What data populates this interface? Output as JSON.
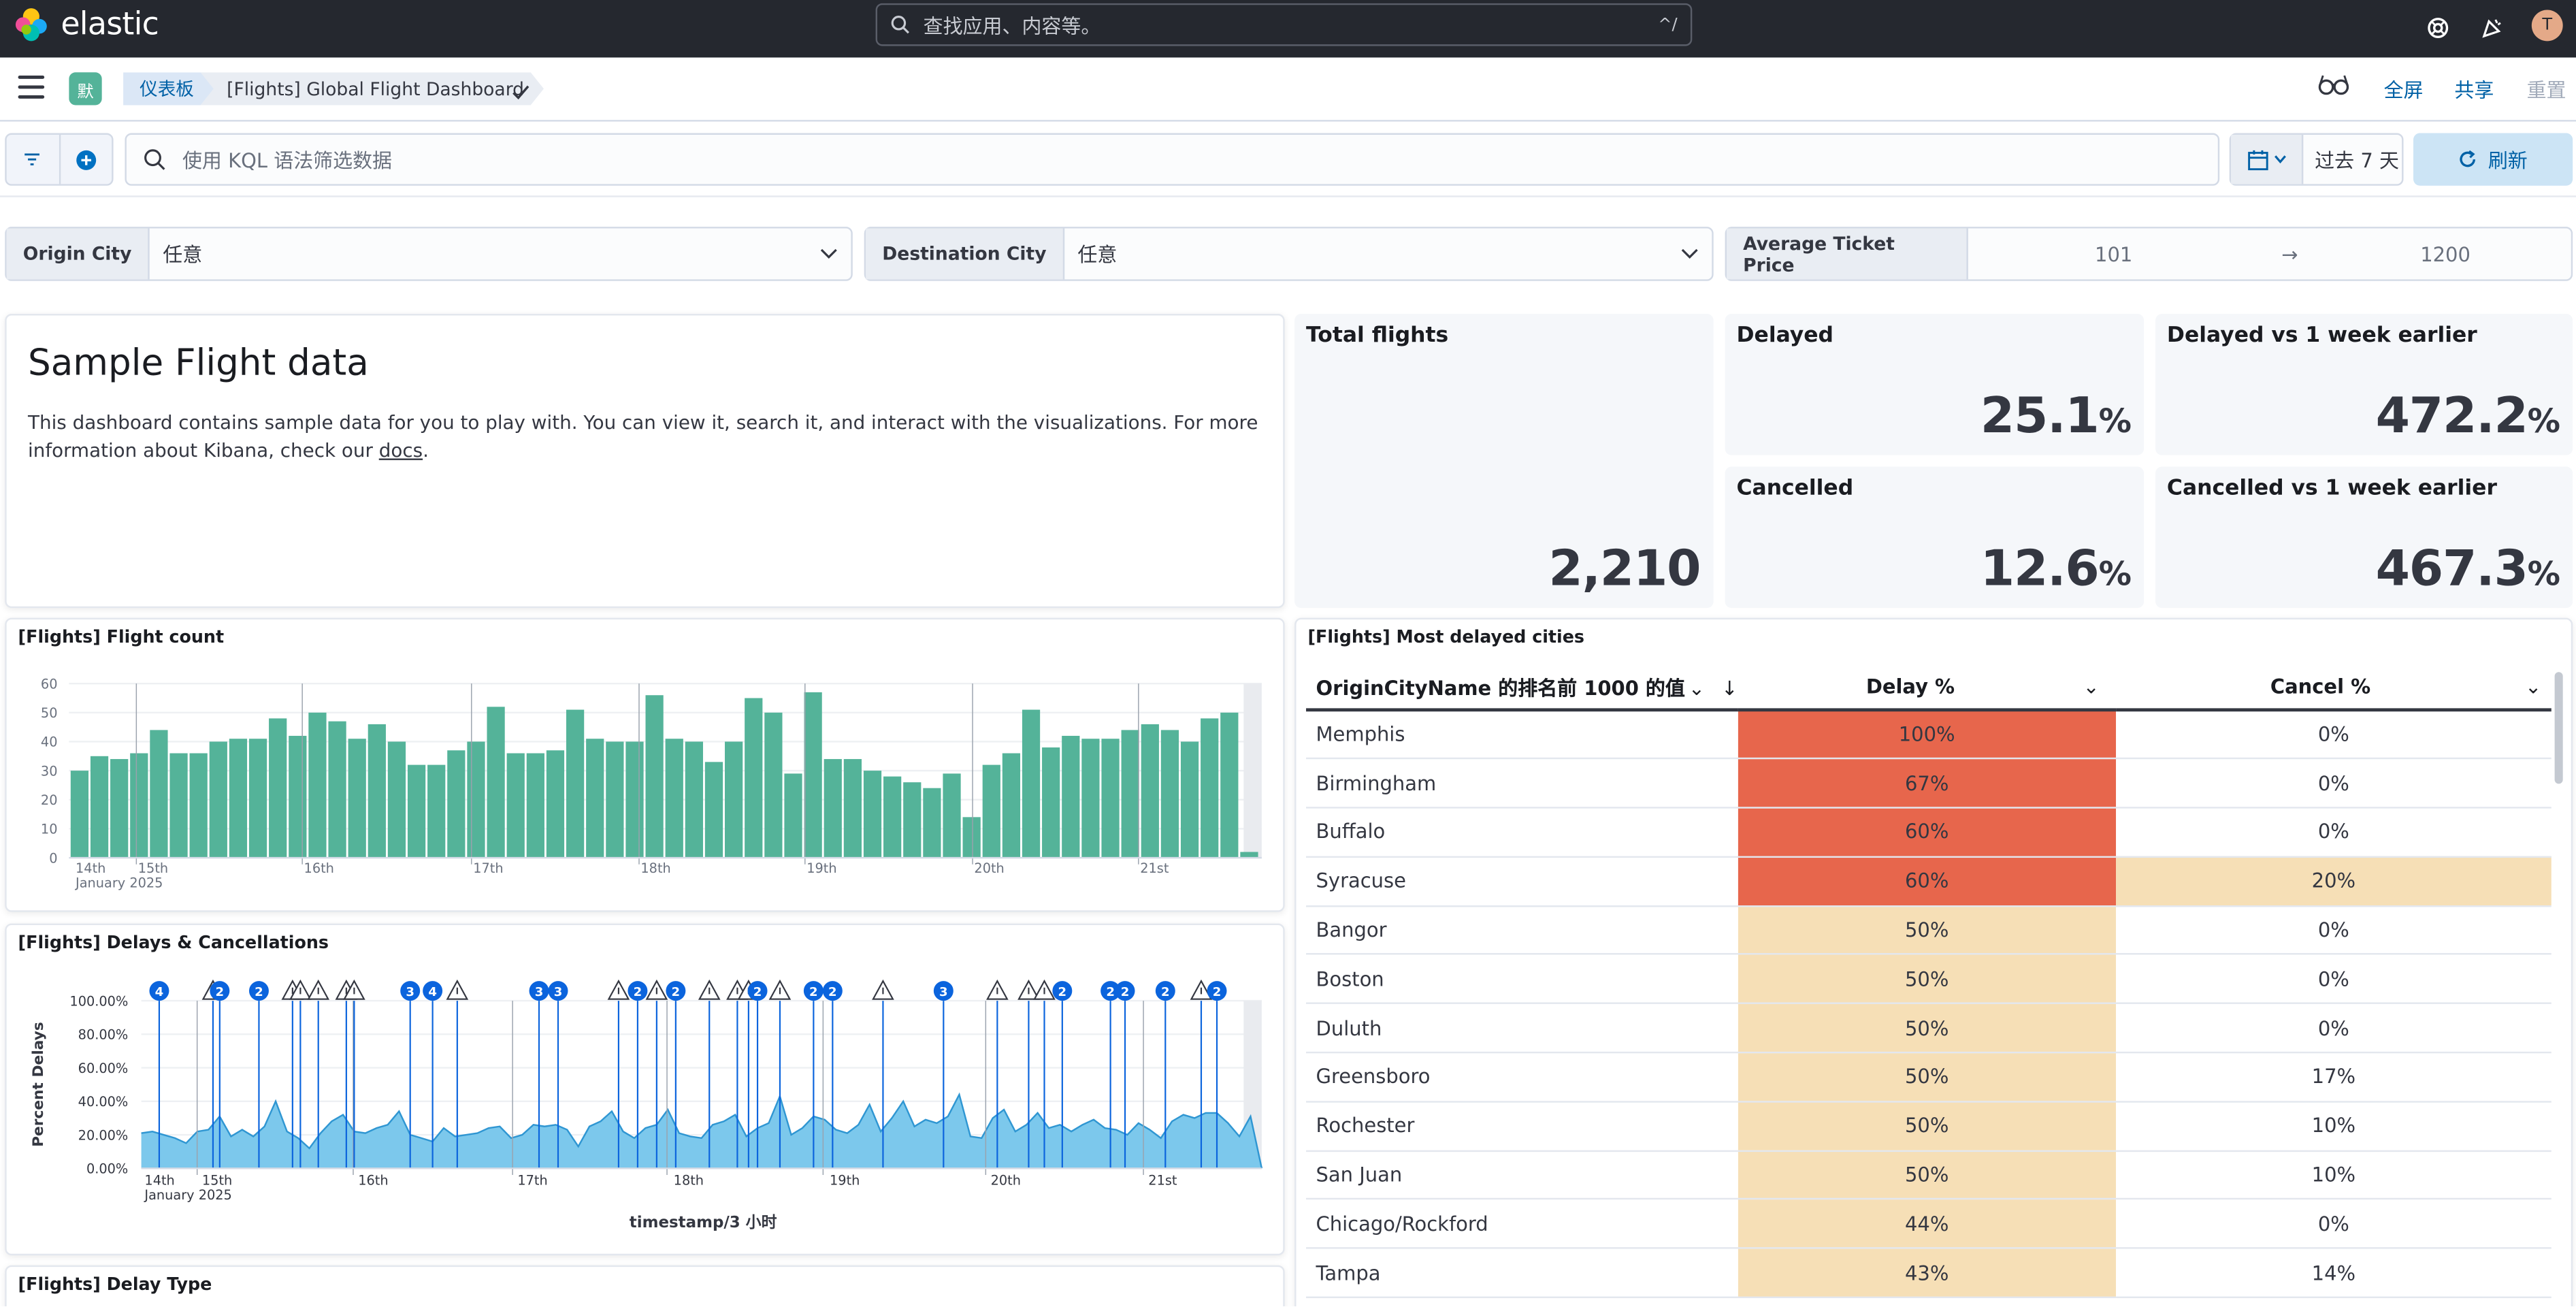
{
  "header": {
    "logo_text": "elastic",
    "search_placeholder": "查找应用、内容等。",
    "search_shortcut": "^/",
    "avatar_initial": "T"
  },
  "nav": {
    "space_initial": "默",
    "breadcrumb_root": "仪表板",
    "breadcrumb_current": "[Flights] Global Flight Dashboard",
    "links": {
      "fullscreen": "全屏",
      "share": "共享",
      "reset": "重置"
    }
  },
  "query": {
    "placeholder": "使用 KQL 语法筛选数据",
    "date_range": "过去 7 天",
    "refresh_label": "刷新"
  },
  "controls": {
    "origin_label": "Origin City",
    "origin_value": "任意",
    "dest_label": "Destination City",
    "dest_value": "任意",
    "price_label": "Average Ticket Price",
    "price_min": "101",
    "price_arrow": "→",
    "price_max": "1200"
  },
  "markdown": {
    "heading": "Sample Flight data",
    "body_before": "This dashboard contains sample data for you to play with. You can view it, search it, and interact with the visualizations. For more information about Kibana, check our ",
    "link": "docs",
    "body_after": "."
  },
  "metrics": {
    "total": {
      "title": "Total flights",
      "value": "2,210",
      "unit": ""
    },
    "delayed": {
      "title": "Delayed",
      "value": "25.1",
      "unit": "%"
    },
    "delayed_wow": {
      "title": "Delayed vs 1 week earlier",
      "value": "472.2",
      "unit": "%"
    },
    "cancelled": {
      "title": "Cancelled",
      "value": "12.6",
      "unit": "%"
    },
    "cancelled_wow": {
      "title": "Cancelled vs 1 week earlier",
      "value": "467.3",
      "unit": "%"
    }
  },
  "panels": {
    "flight_count_title": "[Flights] Flight count",
    "delays_title": "[Flights] Delays & Cancellations",
    "delay_type_title": "[Flights] Delay Type",
    "cities_title": "[Flights] Most delayed cities"
  },
  "chart_data": [
    {
      "type": "bar",
      "title": "[Flights] Flight count",
      "color": "#54b399",
      "ylim": [
        0,
        60
      ],
      "yticks": [
        0,
        10,
        20,
        30,
        40,
        50,
        60
      ],
      "xticks": [
        "14th",
        "15th",
        "16th",
        "17th",
        "18th",
        "19th",
        "20th",
        "21st"
      ],
      "xsub": "January 2025",
      "values": [
        30,
        35,
        34,
        36,
        44,
        36,
        36,
        40,
        41,
        41,
        48,
        42,
        50,
        47,
        41,
        46,
        40,
        32,
        32,
        37,
        40,
        52,
        36,
        36,
        37,
        51,
        41,
        40,
        40,
        56,
        41,
        40,
        33,
        40,
        55,
        50,
        29,
        57,
        34,
        34,
        30,
        28,
        26,
        24,
        29,
        14,
        32,
        36,
        51,
        38,
        42,
        41,
        41,
        44,
        46,
        44,
        40,
        48,
        50,
        2
      ],
      "grid": true
    },
    {
      "type": "area",
      "title": "[Flights] Delays & Cancellations",
      "color": "#6dccb1",
      "ylabel": "Percent Delays",
      "xlabel": "timestamp/3 小时",
      "ylim": [
        0,
        100
      ],
      "yticks": [
        "0.00%",
        "20.00%",
        "40.00%",
        "60.00%",
        "80.00%",
        "100.00%"
      ],
      "xticks": [
        "14th",
        "15th",
        "16th",
        "17th",
        "18th",
        "19th",
        "20th",
        "21st"
      ],
      "xsub": "January 2025",
      "values": [
        21,
        22,
        20,
        18,
        15,
        22,
        23,
        31,
        19,
        23,
        19,
        25,
        40,
        22,
        18,
        12,
        21,
        28,
        32,
        22,
        21,
        24,
        26,
        34,
        20,
        18,
        16,
        24,
        19,
        20,
        21,
        24,
        25,
        18,
        20,
        26,
        25,
        26,
        23,
        13,
        25,
        28,
        34,
        22,
        18,
        24,
        26,
        35,
        21,
        19,
        18,
        26,
        28,
        32,
        19,
        24,
        27,
        43,
        20,
        24,
        31,
        29,
        23,
        21,
        26,
        38,
        22,
        30,
        40,
        25,
        29,
        27,
        31,
        44,
        19,
        18,
        30,
        35,
        22,
        26,
        33,
        24,
        26,
        22,
        26,
        29,
        24,
        23,
        20,
        27,
        23,
        18,
        28,
        32,
        30,
        33,
        33,
        27,
        19,
        31,
        0
      ],
      "annotations": [
        {
          "pos": 0.016,
          "kind": "count",
          "label": "4"
        },
        {
          "pos": 0.064,
          "kind": "warn"
        },
        {
          "pos": 0.07,
          "kind": "count",
          "label": "2"
        },
        {
          "pos": 0.105,
          "kind": "count",
          "label": "2"
        },
        {
          "pos": 0.135,
          "kind": "warn"
        },
        {
          "pos": 0.142,
          "kind": "warn"
        },
        {
          "pos": 0.158,
          "kind": "warn"
        },
        {
          "pos": 0.183,
          "kind": "warn"
        },
        {
          "pos": 0.19,
          "kind": "warn"
        },
        {
          "pos": 0.24,
          "kind": "count",
          "label": "3"
        },
        {
          "pos": 0.26,
          "kind": "count",
          "label": "4"
        },
        {
          "pos": 0.282,
          "kind": "warn"
        },
        {
          "pos": 0.355,
          "kind": "count",
          "label": "3"
        },
        {
          "pos": 0.372,
          "kind": "count",
          "label": "3"
        },
        {
          "pos": 0.426,
          "kind": "warn"
        },
        {
          "pos": 0.443,
          "kind": "count",
          "label": "2"
        },
        {
          "pos": 0.46,
          "kind": "warn"
        },
        {
          "pos": 0.477,
          "kind": "count",
          "label": "2"
        },
        {
          "pos": 0.507,
          "kind": "warn"
        },
        {
          "pos": 0.532,
          "kind": "warn"
        },
        {
          "pos": 0.542,
          "kind": "warn"
        },
        {
          "pos": 0.55,
          "kind": "count",
          "label": "2"
        },
        {
          "pos": 0.57,
          "kind": "warn"
        },
        {
          "pos": 0.6,
          "kind": "count",
          "label": "2"
        },
        {
          "pos": 0.617,
          "kind": "count",
          "label": "2"
        },
        {
          "pos": 0.662,
          "kind": "warn"
        },
        {
          "pos": 0.716,
          "kind": "count",
          "label": "3"
        },
        {
          "pos": 0.764,
          "kind": "warn"
        },
        {
          "pos": 0.792,
          "kind": "warn"
        },
        {
          "pos": 0.806,
          "kind": "warn"
        },
        {
          "pos": 0.822,
          "kind": "count",
          "label": "2"
        },
        {
          "pos": 0.865,
          "kind": "count",
          "label": "2"
        },
        {
          "pos": 0.878,
          "kind": "count",
          "label": "2"
        },
        {
          "pos": 0.914,
          "kind": "count",
          "label": "2"
        },
        {
          "pos": 0.946,
          "kind": "warn"
        },
        {
          "pos": 0.96,
          "kind": "count",
          "label": "2"
        }
      ]
    },
    {
      "type": "table",
      "title": "[Flights] Most delayed cities",
      "columns": [
        "OriginCityName 的排名前 1000 的值",
        "Delay %",
        "Cancel %"
      ],
      "rows": [
        {
          "city": "Memphis",
          "delay": "100%",
          "cancel": "0%",
          "delay_color": "#e7664c",
          "cancel_color": "#ffffff"
        },
        {
          "city": "Birmingham",
          "delay": "67%",
          "cancel": "0%",
          "delay_color": "#e7664c",
          "cancel_color": "#ffffff"
        },
        {
          "city": "Buffalo",
          "delay": "60%",
          "cancel": "0%",
          "delay_color": "#e7664c",
          "cancel_color": "#ffffff"
        },
        {
          "city": "Syracuse",
          "delay": "60%",
          "cancel": "20%",
          "delay_color": "#e7664c",
          "cancel_color": "#f6dfb6"
        },
        {
          "city": "Bangor",
          "delay": "50%",
          "cancel": "0%",
          "delay_color": "#f6dfb6",
          "cancel_color": "#ffffff"
        },
        {
          "city": "Boston",
          "delay": "50%",
          "cancel": "0%",
          "delay_color": "#f6dfb6",
          "cancel_color": "#ffffff"
        },
        {
          "city": "Duluth",
          "delay": "50%",
          "cancel": "0%",
          "delay_color": "#f6dfb6",
          "cancel_color": "#ffffff"
        },
        {
          "city": "Greensboro",
          "delay": "50%",
          "cancel": "17%",
          "delay_color": "#f6dfb6",
          "cancel_color": "#ffffff"
        },
        {
          "city": "Rochester",
          "delay": "50%",
          "cancel": "10%",
          "delay_color": "#f6dfb6",
          "cancel_color": "#ffffff"
        },
        {
          "city": "San Juan",
          "delay": "50%",
          "cancel": "10%",
          "delay_color": "#f6dfb6",
          "cancel_color": "#ffffff"
        },
        {
          "city": "Chicago/Rockford",
          "delay": "44%",
          "cancel": "0%",
          "delay_color": "#f6dfb6",
          "cancel_color": "#ffffff"
        },
        {
          "city": "Tampa",
          "delay": "43%",
          "cancel": "14%",
          "delay_color": "#f6dfb6",
          "cancel_color": "#ffffff"
        }
      ]
    }
  ]
}
